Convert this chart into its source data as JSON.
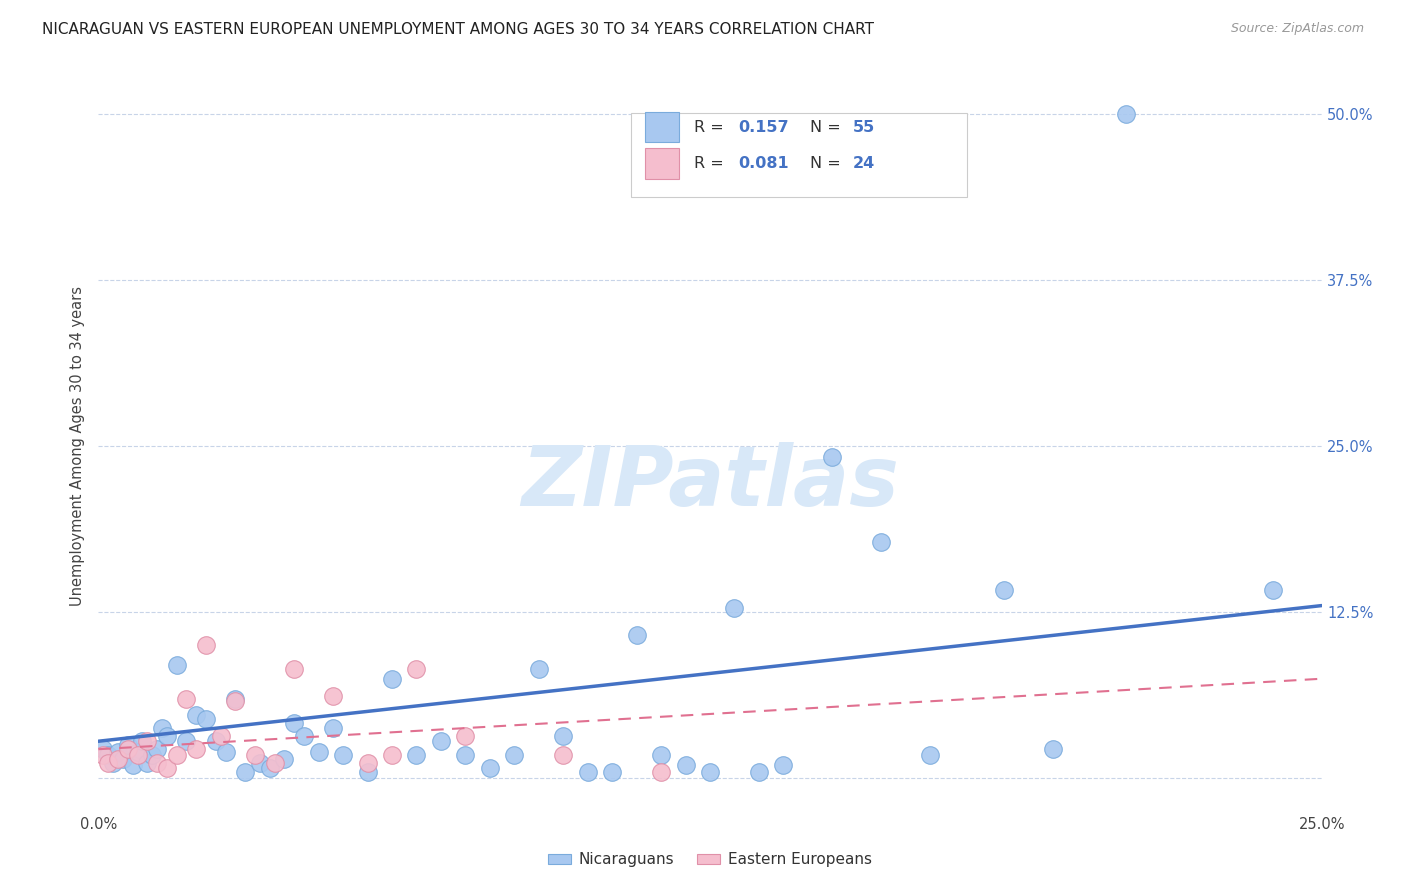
{
  "title": "NICARAGUAN VS EASTERN EUROPEAN UNEMPLOYMENT AMONG AGES 30 TO 34 YEARS CORRELATION CHART",
  "source": "Source: ZipAtlas.com",
  "ylabel": "Unemployment Among Ages 30 to 34 years",
  "xlim": [
    0.0,
    0.25
  ],
  "ylim": [
    -0.025,
    0.525
  ],
  "xtick_positions": [
    0.0,
    0.05,
    0.1,
    0.15,
    0.2,
    0.25
  ],
  "xtick_labels": [
    "0.0%",
    "",
    "",
    "",
    "",
    "25.0%"
  ],
  "ytick_positions": [
    0.0,
    0.125,
    0.25,
    0.375,
    0.5
  ],
  "ytick_labels": [
    "",
    "12.5%",
    "25.0%",
    "37.5%",
    "50.0%"
  ],
  "r1": "0.157",
  "n1": "55",
  "r2": "0.081",
  "n2": "24",
  "legend_label1": "Nicaraguans",
  "legend_label2": "Eastern Europeans",
  "blue_fill": "#a8c8f0",
  "blue_edge": "#7aabdc",
  "pink_fill": "#f5bece",
  "pink_edge": "#e090a8",
  "blue_line": "#4472c4",
  "pink_line": "#e07090",
  "grid_color": "#c8d4e8",
  "watermark_color": "#d8e8f8",
  "blue_scatter_x": [
    0.001,
    0.002,
    0.003,
    0.004,
    0.005,
    0.006,
    0.007,
    0.008,
    0.009,
    0.01,
    0.011,
    0.012,
    0.013,
    0.014,
    0.016,
    0.018,
    0.02,
    0.022,
    0.024,
    0.026,
    0.028,
    0.03,
    0.033,
    0.035,
    0.038,
    0.04,
    0.042,
    0.045,
    0.048,
    0.05,
    0.055,
    0.06,
    0.065,
    0.07,
    0.075,
    0.08,
    0.085,
    0.09,
    0.095,
    0.1,
    0.105,
    0.11,
    0.115,
    0.12,
    0.125,
    0.13,
    0.135,
    0.14,
    0.15,
    0.16,
    0.17,
    0.185,
    0.195,
    0.21,
    0.24
  ],
  "blue_scatter_y": [
    0.022,
    0.018,
    0.012,
    0.02,
    0.015,
    0.025,
    0.01,
    0.02,
    0.028,
    0.012,
    0.018,
    0.022,
    0.038,
    0.032,
    0.085,
    0.028,
    0.048,
    0.045,
    0.028,
    0.02,
    0.06,
    0.005,
    0.012,
    0.008,
    0.015,
    0.042,
    0.032,
    0.02,
    0.038,
    0.018,
    0.005,
    0.075,
    0.018,
    0.028,
    0.018,
    0.008,
    0.018,
    0.082,
    0.032,
    0.005,
    0.005,
    0.108,
    0.018,
    0.01,
    0.005,
    0.128,
    0.005,
    0.01,
    0.242,
    0.178,
    0.018,
    0.142,
    0.022,
    0.5,
    0.142
  ],
  "pink_scatter_x": [
    0.001,
    0.002,
    0.004,
    0.006,
    0.008,
    0.01,
    0.012,
    0.014,
    0.016,
    0.018,
    0.02,
    0.022,
    0.025,
    0.028,
    0.032,
    0.036,
    0.04,
    0.048,
    0.055,
    0.06,
    0.065,
    0.075,
    0.095,
    0.115
  ],
  "pink_scatter_y": [
    0.018,
    0.012,
    0.015,
    0.022,
    0.018,
    0.028,
    0.012,
    0.008,
    0.018,
    0.06,
    0.022,
    0.1,
    0.032,
    0.058,
    0.018,
    0.012,
    0.082,
    0.062,
    0.012,
    0.018,
    0.082,
    0.032,
    0.018,
    0.005
  ],
  "blue_trend_x": [
    0.0,
    0.25
  ],
  "blue_trend_y": [
    0.028,
    0.13
  ],
  "pink_trend_x": [
    0.0,
    0.25
  ],
  "pink_trend_y": [
    0.022,
    0.075
  ]
}
